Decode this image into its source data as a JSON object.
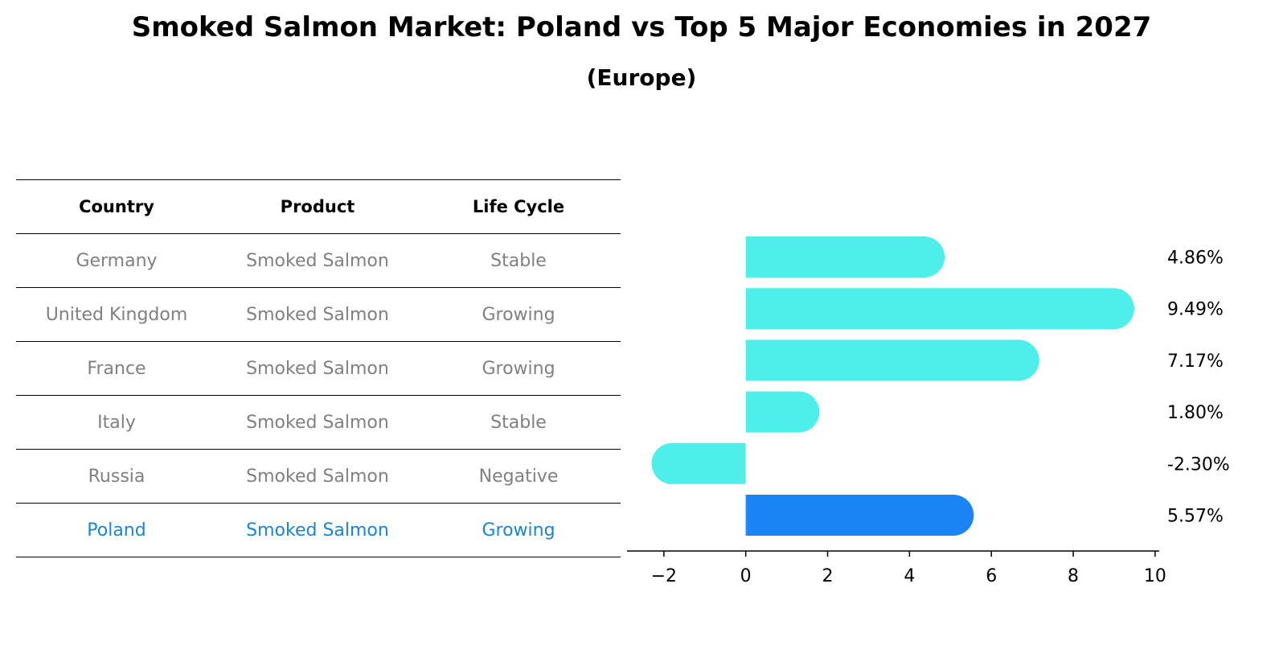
{
  "title": "Smoked Salmon Market: Poland vs Top 5 Major Economies in 2027",
  "subtitle": "(Europe)",
  "table": {
    "headers": [
      "Country",
      "Product",
      "Life Cycle"
    ],
    "rows": [
      [
        "Germany",
        "Smoked Salmon",
        "Stable"
      ],
      [
        "United Kingdom",
        "Smoked Salmon",
        "Growing"
      ],
      [
        "France",
        "Smoked Salmon",
        "Growing"
      ],
      [
        "Italy",
        "Smoked Salmon",
        "Stable"
      ],
      [
        "Russia",
        "Smoked Salmon",
        "Negative"
      ],
      [
        "Poland",
        "Smoked Salmon",
        "Growing"
      ]
    ],
    "highlight_row": 5
  },
  "chart_data": {
    "type": "bar",
    "orientation": "horizontal",
    "categories": [
      "Germany",
      "United Kingdom",
      "France",
      "Italy",
      "Russia",
      "Poland"
    ],
    "values": [
      4.86,
      9.49,
      7.17,
      1.8,
      -2.3,
      5.57
    ],
    "labels": [
      "4.86%",
      "9.49%",
      "7.17%",
      "1.80%",
      "-2.30%",
      "5.57%"
    ],
    "xlim": [
      -2.9,
      10.1
    ],
    "xticks": [
      -2,
      0,
      2,
      4,
      6,
      8,
      10
    ],
    "xtick_labels": [
      "−2",
      "0",
      "2",
      "4",
      "6",
      "8",
      "10"
    ],
    "colors": {
      "default": "#4eeeea",
      "highlight": "#1a84f5"
    },
    "highlight_index": 5
  }
}
